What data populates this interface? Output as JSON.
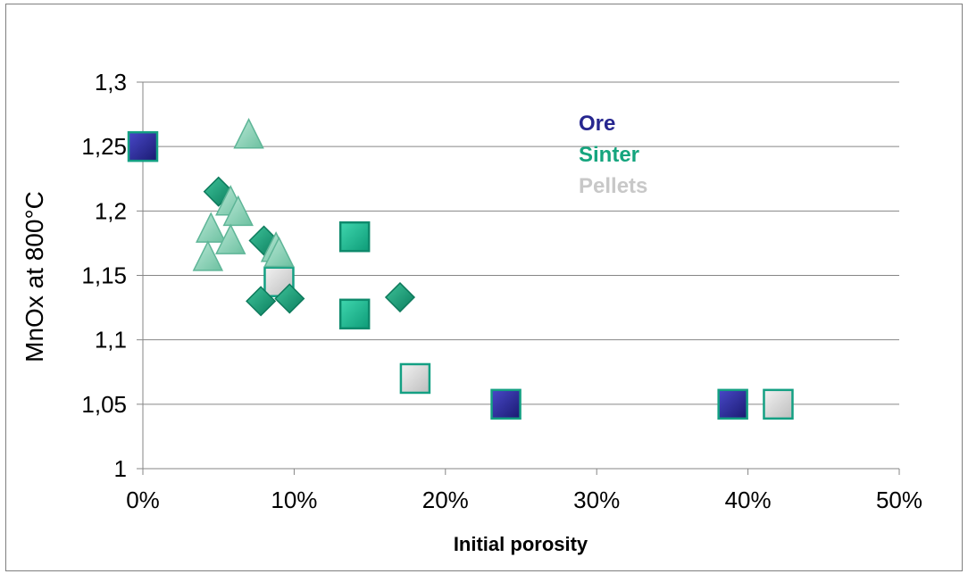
{
  "chart_data": {
    "type": "scatter",
    "xlabel": "Initial porosity",
    "ylabel": "MnOx at 800°C",
    "xlim": [
      0,
      0.5
    ],
    "ylim": [
      1,
      1.3
    ],
    "x_ticks": [
      0,
      0.1,
      0.2,
      0.3,
      0.4,
      0.5
    ],
    "x_tick_labels": [
      "0%",
      "10%",
      "20%",
      "30%",
      "40%",
      "50%"
    ],
    "y_ticks": [
      1,
      1.05,
      1.1,
      1.15,
      1.2,
      1.25,
      1.3
    ],
    "y_tick_labels": [
      "1",
      "1,05",
      "1,1",
      "1,15",
      "1,2",
      "1,25",
      "1,3"
    ],
    "grid": "horizontal",
    "legend": [
      {
        "label": "Ore",
        "color": "#26268f"
      },
      {
        "label": "Sinter",
        "color": "#15a57e"
      },
      {
        "label": "Pellets",
        "color": "#c8c8c8"
      }
    ],
    "series": [
      {
        "marker": "square",
        "fill": "#2a2a94",
        "stroke": "#14a083",
        "points": [
          {
            "x": 0.0,
            "y": 1.25
          },
          {
            "x": 0.24,
            "y": 1.05
          },
          {
            "x": 0.39,
            "y": 1.05
          }
        ]
      },
      {
        "marker": "square",
        "fill": "#1fb893",
        "stroke": "#0e8a6c",
        "points": [
          {
            "x": 0.14,
            "y": 1.18
          },
          {
            "x": 0.14,
            "y": 1.12
          }
        ]
      },
      {
        "marker": "square",
        "fill": "#d4d4d4",
        "stroke": "#14a083",
        "points": [
          {
            "x": 0.09,
            "y": 1.145
          },
          {
            "x": 0.18,
            "y": 1.07
          },
          {
            "x": 0.42,
            "y": 1.05
          }
        ]
      },
      {
        "marker": "diamond",
        "fill": "#18a078",
        "stroke": "#0d7a5c",
        "points": [
          {
            "x": 0.05,
            "y": 1.215
          },
          {
            "x": 0.08,
            "y": 1.177
          },
          {
            "x": 0.078,
            "y": 1.13
          },
          {
            "x": 0.097,
            "y": 1.132
          },
          {
            "x": 0.17,
            "y": 1.133
          }
        ]
      },
      {
        "marker": "triangle",
        "fill": "#86d0b4",
        "stroke": "#5eb597",
        "points": [
          {
            "x": 0.07,
            "y": 1.26
          },
          {
            "x": 0.058,
            "y": 1.208
          },
          {
            "x": 0.063,
            "y": 1.2
          },
          {
            "x": 0.045,
            "y": 1.187
          },
          {
            "x": 0.058,
            "y": 1.178
          },
          {
            "x": 0.088,
            "y": 1.172
          },
          {
            "x": 0.09,
            "y": 1.168
          },
          {
            "x": 0.043,
            "y": 1.165
          }
        ]
      }
    ]
  }
}
